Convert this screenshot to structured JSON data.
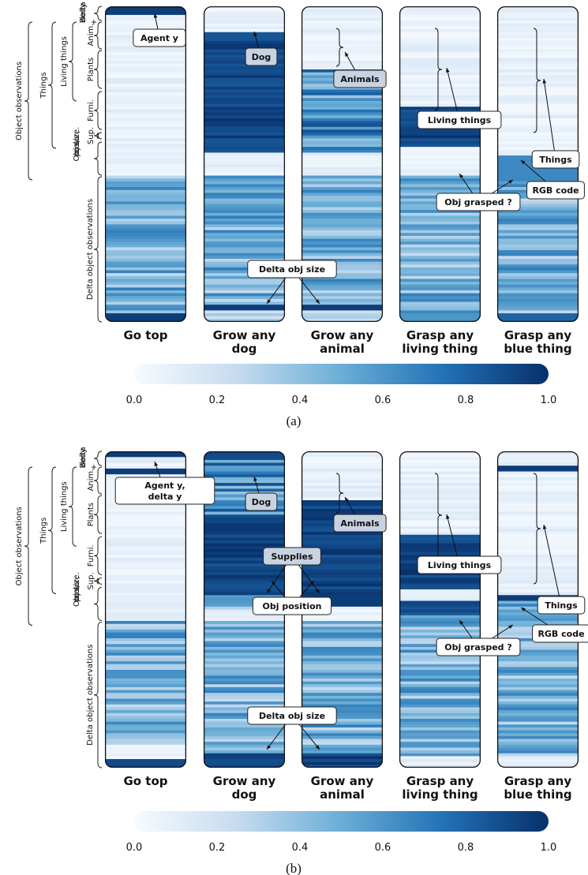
{
  "colormap": {
    "name": "Blues",
    "low": "#f7fbff",
    "high": "#08306b"
  },
  "group_labels": {
    "body": "Body + delta body",
    "object_obs": "Object observations",
    "things": "Things",
    "living": "Living things",
    "anim": "Anim.",
    "plants": "Plants",
    "furni": "Furni.",
    "sup": "Sup.",
    "objpos": "Obj pos, color, size.",
    "delta": "Delta object observations"
  },
  "colorbar": {
    "ticks": [
      "0.0",
      "0.2",
      "0.4",
      "0.6",
      "0.8",
      "1.0"
    ],
    "range": [
      0,
      1
    ]
  },
  "chart_data": [
    {
      "type": "heatmap",
      "caption": "(a)",
      "title": "",
      "columns": [
        "Go top",
        "Grow any dog",
        "Grow any animal",
        "Grasp any living thing",
        "Grasp any blue thing"
      ],
      "annotations": [
        "Agent y",
        "Dog",
        "Animals",
        "Living things",
        "Things",
        "RGB code",
        "Obj grasped ?",
        "Delta obj size"
      ]
    },
    {
      "type": "heatmap",
      "caption": "(b)",
      "title": "",
      "columns": [
        "Go top",
        "Grow any dog",
        "Grow any animal",
        "Grasp any living thing",
        "Grasp any blue thing"
      ],
      "annotations": [
        "Agent y, delta y",
        "Dog",
        "Animals",
        "Supplies",
        "Living things",
        "Obj position",
        "Things",
        "RGB code",
        "Obj grasped ?",
        "Delta obj size"
      ]
    }
  ]
}
